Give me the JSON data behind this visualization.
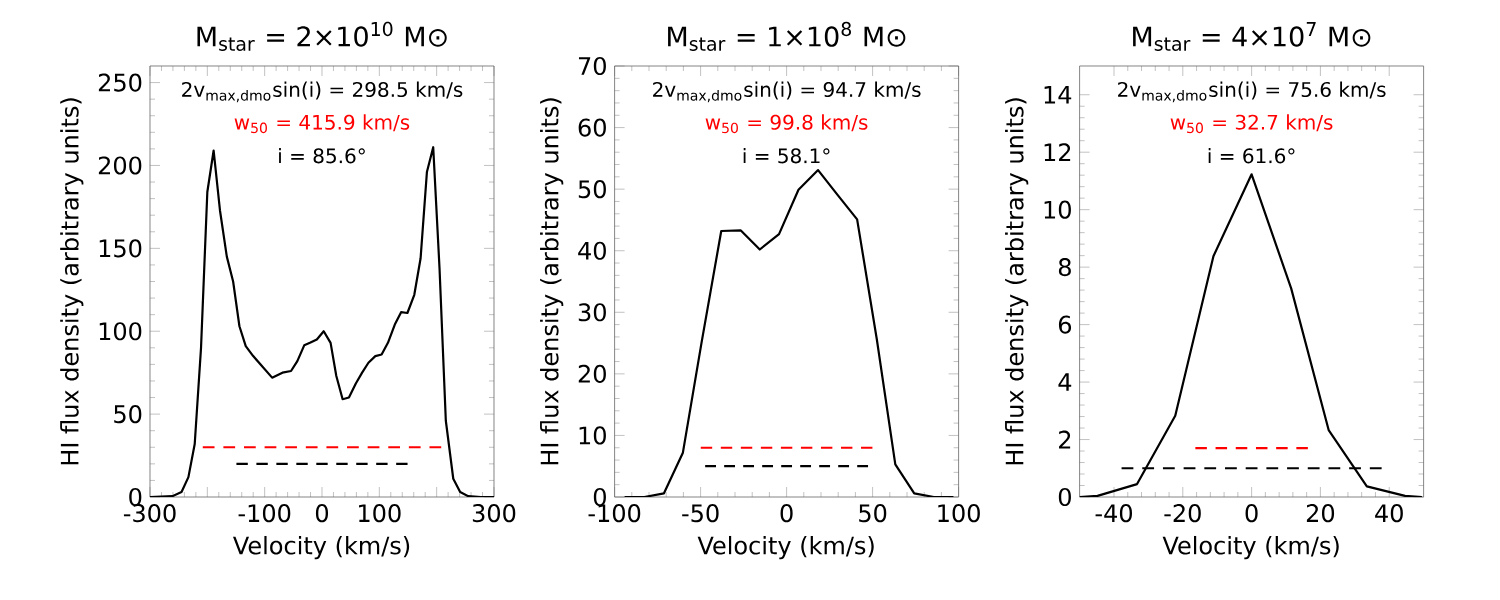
{
  "chart_data": [
    {
      "type": "line",
      "title": "M$_{star}$ = 2×10$^{10}$ M⊙",
      "xlabel": "Velocity (km/s)",
      "ylabel": "HI flux density (arbitrary units)",
      "xlim": [
        -300,
        300
      ],
      "ylim": [
        0,
        260
      ],
      "xticks": [
        -300,
        {
          "value": -200,
          "label": null
        },
        -100,
        0,
        100,
        {
          "value": 200,
          "label": null
        },
        300
      ],
      "yticks": [
        0,
        50,
        100,
        150,
        200,
        250
      ],
      "series": [
        {
          "color": "#000000",
          "line_style": "solid",
          "x": [
            -300,
            -261,
            -245,
            -233,
            -222,
            -211,
            -200,
            -189,
            -178,
            -166,
            -155,
            -144,
            -133,
            -120,
            -87,
            -69,
            -54,
            -43,
            -31,
            -21,
            -9,
            3,
            15,
            25,
            36,
            47,
            59,
            70,
            81,
            93,
            104,
            115,
            127,
            138,
            149,
            161,
            172,
            183,
            194,
            205,
            216,
            229,
            241,
            255,
            277,
            300
          ],
          "values": [
            0,
            0.5,
            3,
            12,
            32,
            90,
            184,
            209,
            173,
            145,
            130,
            103,
            91,
            85,
            72,
            75,
            76,
            82,
            91.5,
            93,
            95,
            100,
            93,
            73,
            59,
            60,
            68.5,
            75,
            81,
            85,
            86,
            93,
            104,
            111.5,
            111,
            122,
            144,
            196,
            211,
            138,
            46,
            11,
            3,
            0.5,
            0,
            0
          ]
        },
        {
          "name": "2v$_{max,dmo}$sin(i) = 298.5 km/s",
          "color": "#000000",
          "line_style": "dashed",
          "x": [
            -149.25,
            149.25
          ],
          "values": [
            20,
            20
          ]
        },
        {
          "name": "w$_{50}$ = 415.9 km/s",
          "color": "#ff0000",
          "line_style": "dashed",
          "x": [
            -207.95,
            207.95
          ],
          "values": [
            30,
            30
          ]
        }
      ],
      "annotations": [
        "i = 85.6°"
      ]
    },
    {
      "type": "line",
      "title": "M$_{star}$ = 1×10$^{8}$ M⊙",
      "xlabel": "Velocity (km/s)",
      "ylabel": "HI flux density (arbitrary units)",
      "xlim": [
        -100,
        100
      ],
      "ylim": [
        0,
        70
      ],
      "xticks": [
        -100,
        -50,
        0,
        50,
        100
      ],
      "yticks": [
        0,
        10,
        20,
        30,
        40,
        50,
        60,
        70
      ],
      "series": [
        {
          "color": "#000000",
          "line_style": "solid",
          "x": [
            -94.2,
            -82.7,
            -71.3,
            -60.3,
            -49.5,
            -38,
            -26.6,
            -15.6,
            -4.4,
            6.9,
            18.3,
            29.5,
            41,
            52.4,
            63.2,
            74.2,
            85.6,
            97
          ],
          "values": [
            0,
            0,
            0.6,
            7.2,
            25,
            43.2,
            43.3,
            40.2,
            42.7,
            49.9,
            53.1,
            49.1,
            45.1,
            25.7,
            5.3,
            0.6,
            0,
            0
          ]
        },
        {
          "name": "2v$_{max,dmo}$sin(i) = 94.7 km/s",
          "color": "#000000",
          "line_style": "dashed",
          "x": [
            -47.35,
            47.35
          ],
          "values": [
            5,
            5
          ]
        },
        {
          "name": "w$_{50}$ = 99.8 km/s",
          "color": "#ff0000",
          "line_style": "dashed",
          "x": [
            -49.9,
            49.9
          ],
          "values": [
            8,
            8
          ]
        }
      ],
      "annotations": [
        "i = 58.1°"
      ]
    },
    {
      "type": "line",
      "title": "M$_{star}$ = 4×10$^{7}$ M⊙",
      "xlabel": "Velocity (km/s)",
      "ylabel": "HI flux density (arbitrary units)",
      "xlim": [
        -50,
        50
      ],
      "ylim": [
        0,
        15
      ],
      "xticks": [
        -40,
        -20,
        0,
        20,
        40
      ],
      "yticks": [
        0,
        2,
        4,
        6,
        8,
        10,
        12,
        14
      ],
      "series": [
        {
          "color": "#000000",
          "line_style": "solid",
          "x": [
            -50,
            -44.8,
            -33.3,
            -22.2,
            -11.1,
            0,
            11.5,
            22.4,
            33.5,
            44.6,
            49.5
          ],
          "values": [
            0,
            0.04,
            0.45,
            2.83,
            8.38,
            11.23,
            7.26,
            2.33,
            0.37,
            0.04,
            0
          ]
        },
        {
          "name": "2v$_{max,dmo}$sin(i) = 75.6 km/s",
          "color": "#000000",
          "line_style": "dashed",
          "x": [
            -37.8,
            37.8
          ],
          "values": [
            1,
            1
          ]
        },
        {
          "name": "w$_{50}$ = 32.7 km/s",
          "color": "#ff0000",
          "line_style": "dashed",
          "x": [
            -16.35,
            16.35
          ],
          "values": [
            1.7,
            1.7
          ]
        }
      ],
      "annotations": [
        "i = 61.6°"
      ]
    }
  ]
}
